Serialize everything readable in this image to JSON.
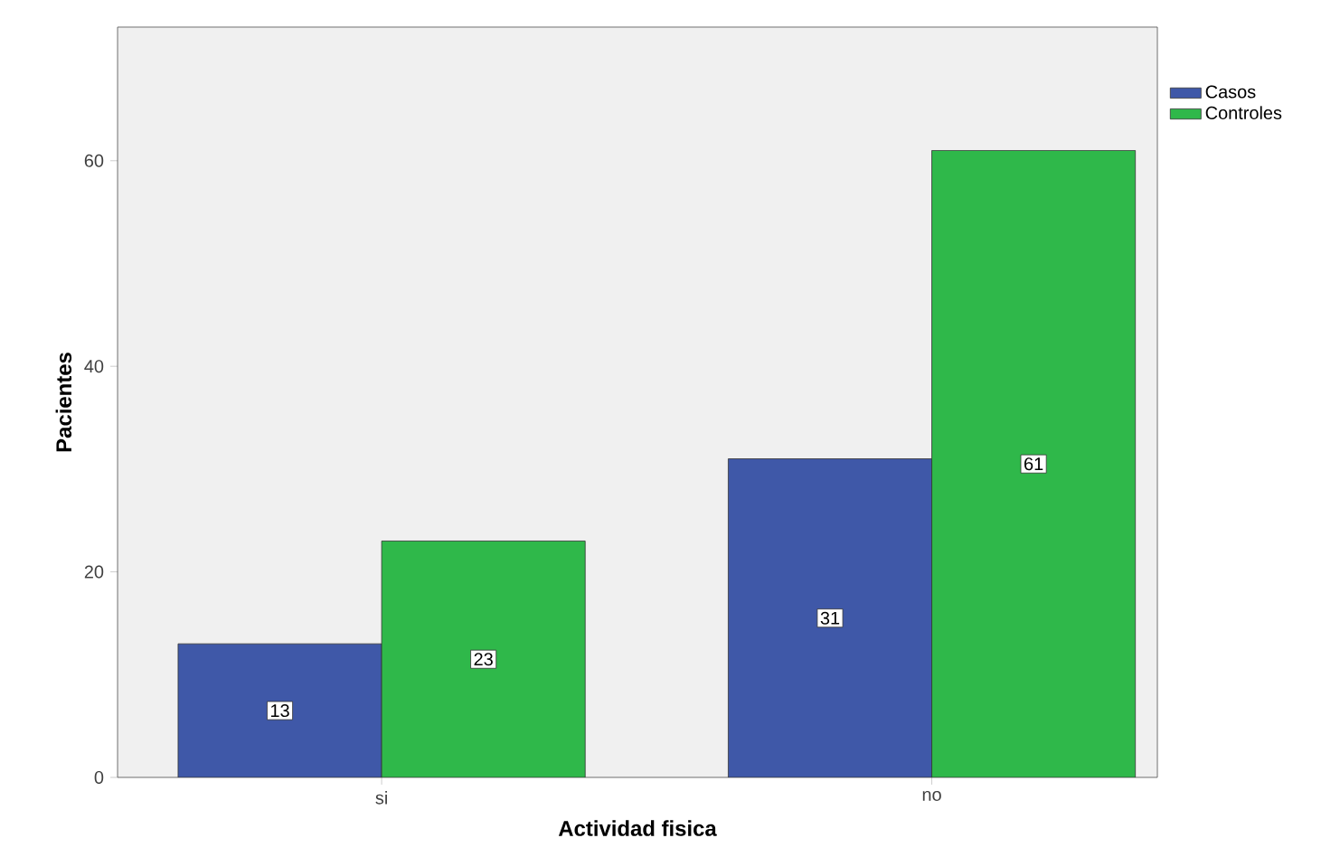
{
  "chart_data": {
    "type": "bar",
    "xlabel": "Actividad fisica",
    "ylabel": "Pacientes",
    "categories": [
      "si",
      "no"
    ],
    "series": [
      {
        "name": "Casos",
        "color": "#3f58a8",
        "values": [
          13,
          31
        ]
      },
      {
        "name": "Controles",
        "color": "#2fb84a",
        "values": [
          23,
          61
        ]
      }
    ],
    "ylim": [
      0,
      73
    ],
    "yticks": [
      0,
      20,
      40,
      60
    ],
    "grid": false,
    "legend": "top right",
    "data_labels": true
  }
}
